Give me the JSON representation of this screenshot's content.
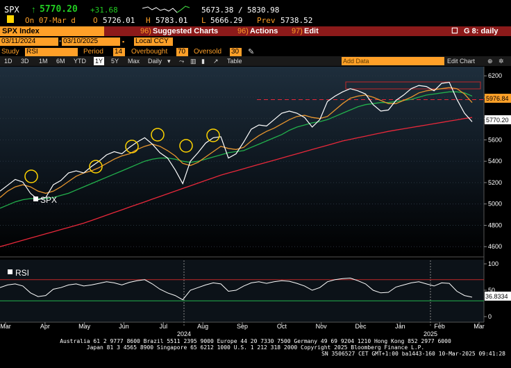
{
  "header": {
    "ticker": "SPX",
    "arrow": "↑",
    "last": "5770.20",
    "change": "+31.68",
    "range_low": "5673.38",
    "range_sep": "/",
    "range_high": "5830.98",
    "date_label": "On 07-Mar d",
    "open_label": "O",
    "open": "5726.01",
    "high_label": "H",
    "high": "5783.01",
    "low_label": "L",
    "low": "5666.29",
    "prev_label": "Prev",
    "prev": "5738.52"
  },
  "menubar": {
    "security": "SPX Index",
    "suggested_num": "96)",
    "suggested": "Suggested Charts",
    "actions_num": "96)",
    "actions": "Actions",
    "edit_num": "97)",
    "edit": "Edit",
    "page_label": "G 8: daily"
  },
  "date_row": {
    "start": "03/11/2024",
    "end": "03/10/2025",
    "currency": "Local CCY"
  },
  "study_row": {
    "study_label": "Study",
    "study": "RSI",
    "period_label": "Period",
    "period": "14",
    "overbought_label": "Overbought",
    "overbought": "70",
    "oversold_label": "Oversold",
    "oversold": "30"
  },
  "toolbar": {
    "ranges": [
      "1D",
      "3D",
      "1M",
      "6M",
      "YTD",
      "1Y",
      "5Y",
      "Max"
    ],
    "selected_range": "1Y",
    "frequency": "Daily",
    "table": "Table",
    "add_data_placeholder": "Add Data",
    "edit_chart": "Edit Chart"
  },
  "chart_data": [
    {
      "type": "line",
      "title": "",
      "legend": [
        "SPX"
      ],
      "legend_position": "bottom-left",
      "x_ticks": [
        "Mar",
        "Apr",
        "May",
        "Jun",
        "Jul",
        "Aug",
        "Sep",
        "Oct",
        "Nov",
        "Dec",
        "Jan",
        "Feb",
        "Mar"
      ],
      "year_labels": [
        "2024",
        "2025"
      ],
      "y_ticks": [
        4600,
        4800,
        5000,
        5200,
        5400,
        5600,
        5800,
        6000,
        6200
      ],
      "ylim": [
        4530,
        6260
      ],
      "last_price_label": "5770.20",
      "reference_label": "5976.84",
      "reference_line": 5976.84,
      "series": [
        {
          "name": "SPX",
          "values": [
            5120,
            5175,
            5230,
            5205,
            5100,
            5040,
            5060,
            5180,
            5220,
            5290,
            5310,
            5290,
            5350,
            5400,
            5460,
            5490,
            5470,
            5530,
            5580,
            5620,
            5560,
            5480,
            5430,
            5320,
            5190,
            5400,
            5480,
            5570,
            5620,
            5630,
            5430,
            5470,
            5580,
            5700,
            5740,
            5730,
            5790,
            5850,
            5870,
            5850,
            5810,
            5720,
            5790,
            5960,
            6010,
            6050,
            6080,
            6060,
            6030,
            5930,
            5870,
            5880,
            5970,
            6020,
            6080,
            6110,
            6100,
            6060,
            6130,
            6140,
            5980,
            5850,
            5770
          ],
          "color": "#ffffff"
        },
        {
          "name": "",
          "values": [
            5060,
            5120,
            5160,
            5180,
            5160,
            5120,
            5100,
            5120,
            5160,
            5210,
            5260,
            5290,
            5310,
            5340,
            5380,
            5420,
            5450,
            5470,
            5510,
            5540,
            5560,
            5540,
            5500,
            5450,
            5380,
            5360,
            5390,
            5440,
            5490,
            5540,
            5520,
            5510,
            5530,
            5590,
            5640,
            5680,
            5710,
            5750,
            5790,
            5820,
            5830,
            5810,
            5800,
            5820,
            5880,
            5940,
            5990,
            6010,
            6020,
            6000,
            5970,
            5940,
            5940,
            5970,
            6000,
            6040,
            6060,
            6070,
            6080,
            6090,
            6080,
            6030,
            5950
          ],
          "color": "#e8962e"
        },
        {
          "name": "",
          "values": [
            4960,
            4990,
            5020,
            5040,
            5050,
            5050,
            5050,
            5060,
            5080,
            5100,
            5130,
            5160,
            5190,
            5220,
            5250,
            5280,
            5310,
            5340,
            5370,
            5400,
            5420,
            5430,
            5430,
            5420,
            5400,
            5390,
            5400,
            5420,
            5440,
            5460,
            5480,
            5490,
            5500,
            5530,
            5560,
            5590,
            5620,
            5650,
            5690,
            5720,
            5740,
            5760,
            5770,
            5790,
            5820,
            5850,
            5880,
            5910,
            5930,
            5940,
            5950,
            5950,
            5960,
            5970,
            5980,
            6000,
            6020,
            6030,
            6040,
            6050,
            6050,
            6040,
            6010
          ],
          "color": "#22b14c"
        },
        {
          "name": "",
          "values": [
            4600,
            4620,
            4640,
            4660,
            4680,
            4700,
            4720,
            4740,
            4760,
            4780,
            4800,
            4820,
            4845,
            4870,
            4895,
            4920,
            4945,
            4970,
            4995,
            5020,
            5045,
            5070,
            5095,
            5120,
            5145,
            5170,
            5195,
            5220,
            5245,
            5270,
            5290,
            5310,
            5330,
            5350,
            5370,
            5390,
            5410,
            5430,
            5450,
            5470,
            5490,
            5510,
            5530,
            5550,
            5570,
            5590,
            5605,
            5620,
            5635,
            5650,
            5665,
            5680,
            5692,
            5704,
            5716,
            5728,
            5740,
            5752,
            5764,
            5776,
            5788,
            5800,
            5810
          ],
          "color": "#e8283a"
        }
      ]
    },
    {
      "type": "line",
      "title": "",
      "legend": [
        "RSI"
      ],
      "legend_position": "top-left",
      "y_ticks": [
        0,
        50,
        100
      ],
      "ylim": [
        0,
        100
      ],
      "last_value_label": "36.8334",
      "overbought": 70,
      "oversold": 30,
      "series": [
        {
          "name": "RSI",
          "values": [
            55,
            60,
            62,
            58,
            45,
            38,
            40,
            52,
            55,
            60,
            62,
            58,
            60,
            63,
            66,
            64,
            60,
            65,
            68,
            70,
            62,
            52,
            45,
            40,
            32,
            50,
            55,
            60,
            64,
            62,
            48,
            50,
            58,
            64,
            66,
            63,
            66,
            68,
            67,
            63,
            58,
            50,
            55,
            66,
            70,
            72,
            73,
            68,
            62,
            50,
            45,
            46,
            56,
            60,
            64,
            66,
            62,
            58,
            64,
            63,
            48,
            40,
            36.8334
          ],
          "color": "#ffffff"
        }
      ]
    }
  ],
  "footer": {
    "line1": "Australia 61 2 9777 8600 Brazil 5511 2395 9000 Europe 44 20 7330 7500 Germany 49 69 9204 1210 Hong Kong 852 2977 6000",
    "line2": "Japan 81 3 4565 8900        Singapore 65 6212 1000        U.S. 1 212 318 2000        Copyright 2025 Bloomberg Finance L.P.",
    "line3": "SN 3506527 CET  GMT+1:00 ba1443-160 10-Mar-2025 09:41:28"
  },
  "colors": {
    "amber": "#ffa028",
    "menubar_red": "#8c1a1a",
    "up_green": "#22cc22",
    "ma50": "#e8962e",
    "ma100": "#22b14c",
    "ma200": "#e8283a"
  }
}
